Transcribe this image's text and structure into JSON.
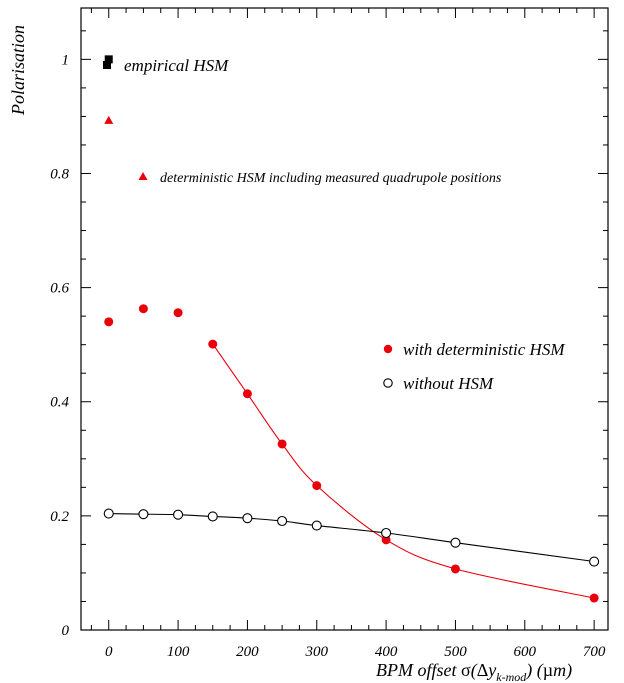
{
  "chart_data": {
    "type": "scatter",
    "title": "",
    "xlabel": "BPM offset σ(Δy_k-mod) (µm)",
    "ylabel": "Polarisation",
    "xlim": [
      -40,
      720
    ],
    "ylim": [
      0,
      1.09
    ],
    "x_ticks": [
      0,
      100,
      200,
      300,
      400,
      500,
      600,
      700
    ],
    "x_tick_labels": [
      "0",
      "100",
      "200",
      "300",
      "400",
      "500",
      "600",
      "700"
    ],
    "y_ticks": [
      0,
      0.2,
      0.4,
      0.6,
      0.8,
      1.0
    ],
    "y_tick_labels": [
      "0",
      "0.2",
      "0.4",
      "0.6",
      "0.8",
      "1"
    ],
    "grid": false,
    "series": [
      {
        "name": "empirical HSM",
        "marker": "filled-square",
        "color": "#000000",
        "x": [
          0
        ],
        "y": [
          1.0
        ]
      },
      {
        "name": "deterministic HSM including measured quadrupole positions",
        "marker": "filled-triangle",
        "color": "#e8000b",
        "x": [
          0
        ],
        "y": [
          0.893
        ]
      },
      {
        "name": "with deterministic HSM",
        "marker": "filled-circle",
        "color": "#e8000b",
        "fit_curve": true,
        "x": [
          0,
          50,
          100,
          150,
          200,
          250,
          300,
          400,
          500,
          700
        ],
        "y": [
          0.54,
          0.563,
          0.556,
          0.501,
          0.414,
          0.326,
          0.253,
          0.158,
          0.107,
          0.056
        ]
      },
      {
        "name": "without HSM",
        "marker": "open-circle",
        "color": "#000000",
        "fit_curve": true,
        "x": [
          0,
          50,
          100,
          150,
          200,
          250,
          300,
          400,
          500,
          700
        ],
        "y": [
          0.204,
          0.203,
          0.202,
          0.199,
          0.196,
          0.191,
          0.183,
          0.17,
          0.153,
          0.12
        ]
      }
    ]
  }
}
